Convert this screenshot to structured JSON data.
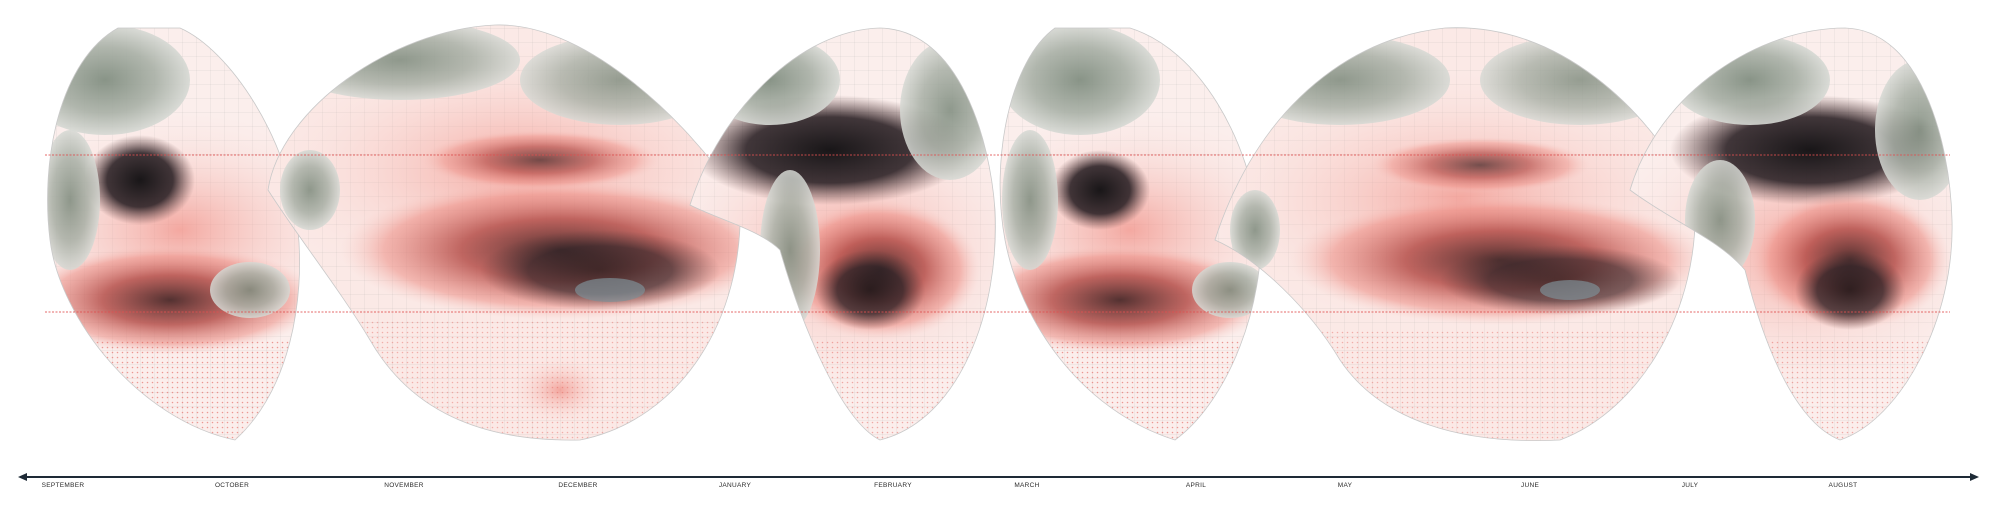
{
  "timeline": {
    "months": [
      "SEPTEMBER",
      "OCTOBER",
      "NOVEMBER",
      "DECEMBER",
      "JANUARY",
      "FEBRUARY",
      "MARCH",
      "APRIL",
      "MAY",
      "JUNE",
      "JULY",
      "AUGUST"
    ]
  },
  "map": {
    "projection": "interrupted pseudo-conic (six lobes)",
    "colors": {
      "low": "#ffffff",
      "mid": "#e8766e",
      "high": "#4a2a2a",
      "deep": "#1a1618",
      "land": "#9aa39a",
      "tropic_line": "#e05050",
      "timeline": "#1e2a36"
    }
  }
}
